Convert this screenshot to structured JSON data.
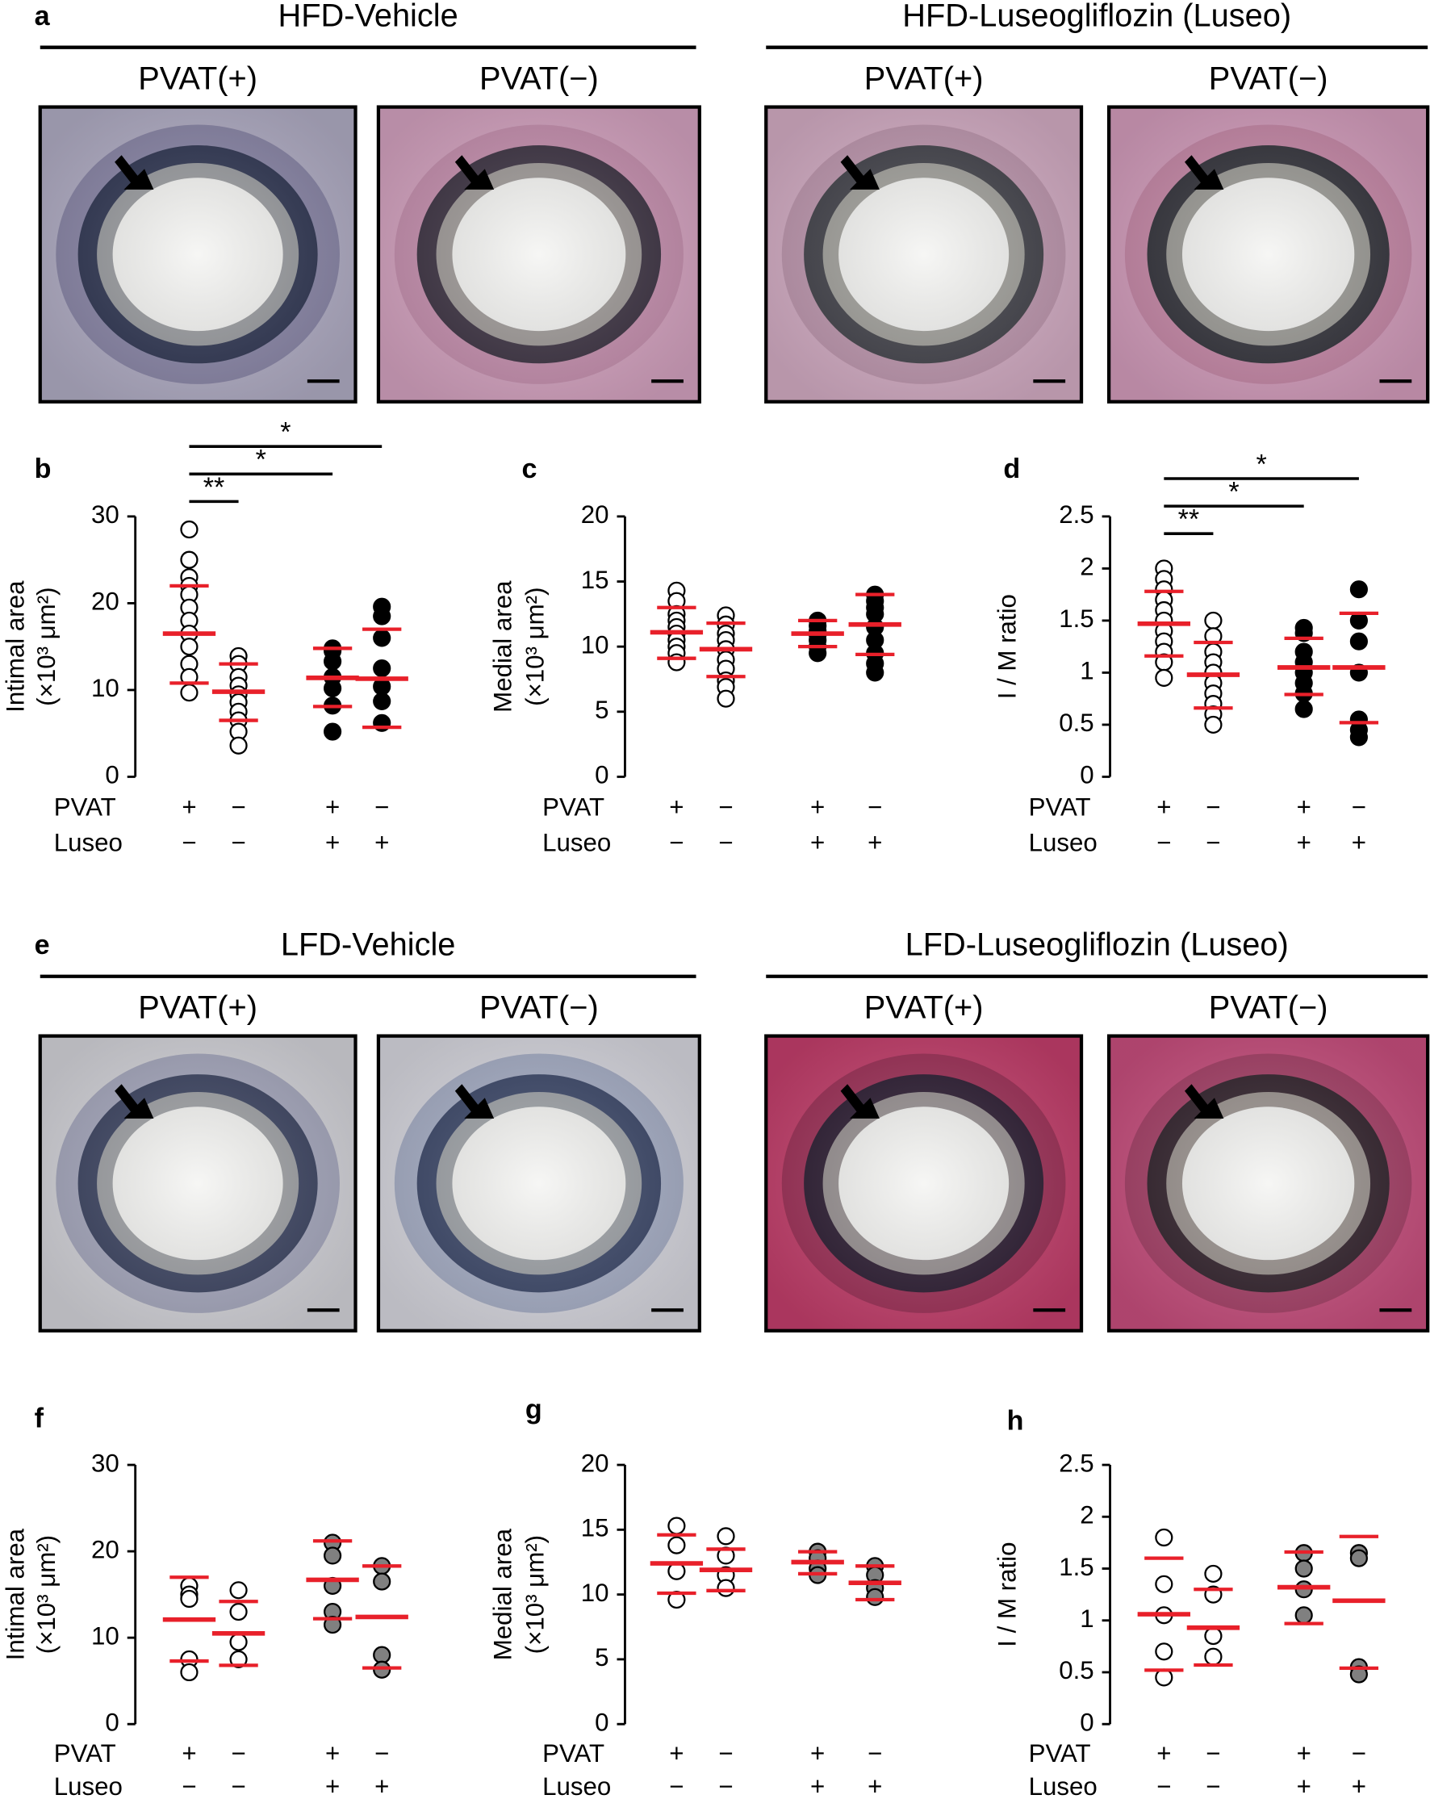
{
  "figure_images": [
    {
      "letter": "a",
      "groups": [
        {
          "title": "HFD-Vehicle",
          "panels": [
            "PVAT(+)",
            "PVAT(−)"
          ]
        },
        {
          "title": "HFD-Luseogliflozin (Luseo)",
          "panels": [
            "PVAT(+)",
            "PVAT(−)"
          ]
        }
      ]
    },
    {
      "letter": "e",
      "groups": [
        {
          "title": "LFD-Vehicle",
          "panels": [
            "PVAT(+)",
            "PVAT(−)"
          ]
        },
        {
          "title": "LFD-Luseogliflozin (Luseo)",
          "panels": [
            "PVAT(+)",
            "PVAT(−)"
          ]
        }
      ]
    }
  ],
  "chart_data": [
    {
      "type": "dot",
      "letter": "b",
      "ylabel": "Intimal area",
      "ylabel_unit": "(×10³ μm²)",
      "ylim": [
        0,
        30
      ],
      "yticks": [
        0,
        10,
        20,
        30
      ],
      "row_labels": [
        "PVAT",
        "Luseo"
      ],
      "rows": [
        [
          "+",
          "−",
          "+",
          "−"
        ],
        [
          "−",
          "−",
          "+",
          "+"
        ]
      ],
      "mean_color": "#e8202a",
      "significance": [
        "**",
        "*",
        "*"
      ],
      "groups": [
        {
          "fill": "#ffffff",
          "points": [
            28.5,
            25,
            23,
            22,
            21,
            19.5,
            18,
            16.5,
            15,
            13,
            11.5,
            9.7
          ],
          "mean": 16.5,
          "upper": 22,
          "lower": 10.8
        },
        {
          "fill": "#ffffff",
          "points": [
            13.9,
            13,
            11.5,
            10.5,
            9.5,
            8.6,
            7.5,
            6.5,
            5.2,
            3.6
          ],
          "mean": 9.8,
          "upper": 13,
          "lower": 6.5
        },
        {
          "fill": "#000000",
          "points": [
            14.8,
            14.5,
            13.3,
            11.5,
            10.2,
            8.2,
            5.2
          ],
          "mean": 11.4,
          "upper": 14.8,
          "lower": 8.1
        },
        {
          "fill": "#000000",
          "points": [
            19.6,
            18.5,
            16,
            12.5,
            10.4,
            8.7,
            6.2
          ],
          "mean": 11.3,
          "upper": 17,
          "lower": 5.7
        }
      ]
    },
    {
      "type": "dot",
      "letter": "c",
      "ylabel": "Medial area",
      "ylabel_unit": "(×10³ μm²)",
      "ylim": [
        0,
        20
      ],
      "yticks": [
        0,
        5,
        10,
        15,
        20
      ],
      "row_labels": [
        "PVAT",
        "Luseo"
      ],
      "rows": [
        [
          "+",
          "−",
          "+",
          "−"
        ],
        [
          "−",
          "−",
          "+",
          "+"
        ]
      ],
      "mean_color": "#e8202a",
      "groups": [
        {
          "fill": "#ffffff",
          "points": [
            14.3,
            13.5,
            12.5,
            12,
            11.5,
            11,
            10.5,
            10,
            9.5,
            8.8
          ],
          "mean": 11.1,
          "upper": 13,
          "lower": 9.1
        },
        {
          "fill": "#ffffff",
          "points": [
            12.4,
            11.7,
            11,
            10.5,
            9.8,
            9,
            8.3,
            7.4,
            6.9,
            6
          ],
          "mean": 9.8,
          "upper": 11.8,
          "lower": 7.7
        },
        {
          "fill": "#000000",
          "points": [
            12,
            11.6,
            11.2,
            10.9,
            10.5,
            10,
            9.5
          ],
          "mean": 11,
          "upper": 12,
          "lower": 10
        },
        {
          "fill": "#000000",
          "points": [
            14,
            13.5,
            13,
            12.5,
            11.5,
            10.5,
            9.5,
            8.7,
            8
          ],
          "mean": 11.7,
          "upper": 14,
          "lower": 9.4
        }
      ]
    },
    {
      "type": "dot",
      "letter": "d",
      "ylabel": "I / M ratio",
      "ylim": [
        0,
        2.5
      ],
      "yticks": [
        0,
        0.5,
        1,
        1.5,
        2,
        2.5
      ],
      "row_labels": [
        "PVAT",
        "Luseo"
      ],
      "rows": [
        [
          "+",
          "−",
          "+",
          "−"
        ],
        [
          "−",
          "−",
          "+",
          "+"
        ]
      ],
      "mean_color": "#e8202a",
      "significance": [
        "**",
        "*",
        "*"
      ],
      "groups": [
        {
          "fill": "#ffffff",
          "points": [
            2,
            1.9,
            1.8,
            1.7,
            1.6,
            1.5,
            1.4,
            1.3,
            1.2,
            1.1,
            0.95
          ],
          "mean": 1.47,
          "upper": 1.78,
          "lower": 1.16
        },
        {
          "fill": "#ffffff",
          "points": [
            1.5,
            1.35,
            1.2,
            1.1,
            1,
            0.9,
            0.8,
            0.7,
            0.6,
            0.5
          ],
          "mean": 0.98,
          "upper": 1.29,
          "lower": 0.66
        },
        {
          "fill": "#000000",
          "points": [
            1.43,
            1.38,
            1.2,
            1.1,
            1,
            0.9,
            0.8,
            0.65
          ],
          "mean": 1.05,
          "upper": 1.33,
          "lower": 0.79
        },
        {
          "fill": "#000000",
          "points": [
            1.8,
            1.5,
            1.3,
            1,
            0.55,
            0.45,
            0.38
          ],
          "mean": 1.05,
          "upper": 1.57,
          "lower": 0.52
        }
      ]
    },
    {
      "type": "dot",
      "letter": "f",
      "ylabel": "Intimal area",
      "ylabel_unit": "(×10³ μm²)",
      "ylim": [
        0,
        30
      ],
      "yticks": [
        0,
        10,
        20,
        30
      ],
      "row_labels": [
        "PVAT",
        "Luseo"
      ],
      "rows": [
        [
          "+",
          "−",
          "+",
          "−"
        ],
        [
          "−",
          "−",
          "+",
          "+"
        ]
      ],
      "mean_color": "#e8202a",
      "groups": [
        {
          "fill": "#ffffff",
          "points": [
            16,
            15,
            14.5,
            7.5,
            6
          ],
          "mean": 12.1,
          "upper": 17,
          "lower": 7.3
        },
        {
          "fill": "#ffffff",
          "points": [
            15.5,
            13,
            9.5,
            7.5
          ],
          "mean": 10.5,
          "upper": 14.2,
          "lower": 6.8
        },
        {
          "fill": "#808080",
          "points": [
            21,
            19.5,
            16,
            13,
            11.5
          ],
          "mean": 16.7,
          "upper": 21.2,
          "lower": 12.2
        },
        {
          "fill": "#808080",
          "points": [
            18.3,
            16.5,
            8,
            6.3
          ],
          "mean": 12.4,
          "upper": 18.3,
          "lower": 6.5
        }
      ]
    },
    {
      "type": "dot",
      "letter": "g",
      "ylabel": "Medial area",
      "ylabel_unit": "(×10³ μm²)",
      "ylim": [
        0,
        20
      ],
      "yticks": [
        0,
        5,
        10,
        15,
        20
      ],
      "row_labels": [
        "PVAT",
        "Luseo"
      ],
      "rows": [
        [
          "+",
          "−",
          "+",
          "−"
        ],
        [
          "−",
          "−",
          "+",
          "+"
        ]
      ],
      "mean_color": "#e8202a",
      "groups": [
        {
          "fill": "#ffffff",
          "points": [
            15.3,
            13.8,
            11.8,
            9.6
          ],
          "mean": 12.4,
          "upper": 14.6,
          "lower": 10.1
        },
        {
          "fill": "#ffffff",
          "points": [
            14.5,
            13,
            11.5,
            10.5
          ],
          "mean": 11.9,
          "upper": 13.5,
          "lower": 10.3
        },
        {
          "fill": "#808080",
          "points": [
            13.3,
            12.8,
            12,
            11.5
          ],
          "mean": 12.5,
          "upper": 13.3,
          "lower": 11.6
        },
        {
          "fill": "#808080",
          "points": [
            12.2,
            11.5,
            10.5,
            9.8
          ],
          "mean": 10.9,
          "upper": 12.2,
          "lower": 9.6
        }
      ]
    },
    {
      "type": "dot",
      "letter": "h",
      "ylabel": "I / M ratio",
      "ylim": [
        0,
        2.5
      ],
      "yticks": [
        0,
        0.5,
        1,
        1.5,
        2,
        2.5
      ],
      "row_labels": [
        "PVAT",
        "Luseo"
      ],
      "rows": [
        [
          "+",
          "−",
          "+",
          "−"
        ],
        [
          "−",
          "−",
          "+",
          "+"
        ]
      ],
      "mean_color": "#e8202a",
      "groups": [
        {
          "fill": "#ffffff",
          "points": [
            1.8,
            1.35,
            1.05,
            0.7,
            0.45
          ],
          "mean": 1.06,
          "upper": 1.6,
          "lower": 0.52
        },
        {
          "fill": "#ffffff",
          "points": [
            1.45,
            1.25,
            0.85,
            0.65
          ],
          "mean": 0.93,
          "upper": 1.3,
          "lower": 0.57
        },
        {
          "fill": "#808080",
          "points": [
            1.65,
            1.5,
            1.3,
            1.05
          ],
          "mean": 1.32,
          "upper": 1.66,
          "lower": 0.97
        },
        {
          "fill": "#808080",
          "points": [
            1.65,
            1.6,
            0.55,
            0.48
          ],
          "mean": 1.19,
          "upper": 1.81,
          "lower": 0.54
        }
      ]
    }
  ]
}
